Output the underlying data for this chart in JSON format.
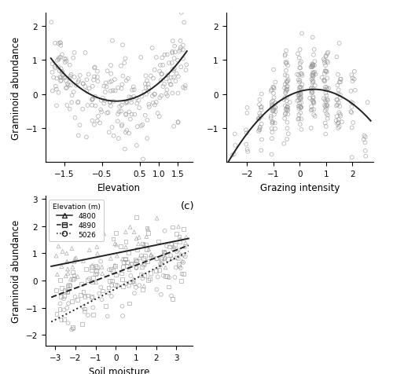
{
  "panel_a": {
    "xlabel": "Elevation",
    "ylabel": "Graminoid abundance",
    "xlim": [
      -2.0,
      1.9
    ],
    "ylim": [
      -2.0,
      2.4
    ],
    "xticks": [
      -1.5,
      -0.5,
      0.5,
      1.0,
      1.5
    ],
    "yticks": [
      -1,
      0,
      1,
      2
    ],
    "curve_a": 0.42,
    "curve_b": 0.1,
    "curve_c": -0.2,
    "curve_xmin": -1.85,
    "curve_xmax": 1.75
  },
  "panel_b": {
    "xlabel": "Grazing intensity",
    "ylabel": "",
    "xlim": [
      -2.8,
      2.8
    ],
    "ylim": [
      -2.0,
      2.4
    ],
    "xticks": [
      -2,
      -1,
      0,
      1,
      2
    ],
    "yticks": [
      -1,
      0,
      1,
      2
    ],
    "curve_a": -0.2,
    "curve_b": 0.22,
    "curve_c": 0.08,
    "curve_xmin": -2.7,
    "curve_xmax": 2.7
  },
  "panel_c": {
    "xlabel": "Soil moisture",
    "ylabel": "Graminoid abundance",
    "label": "(c)",
    "xlim": [
      -3.5,
      3.8
    ],
    "ylim": [
      -2.4,
      3.1
    ],
    "xticks": [
      -3,
      -2,
      -1,
      0,
      1,
      2,
      3
    ],
    "yticks": [
      -2,
      -1,
      0,
      1,
      2,
      3
    ],
    "elevation_labels": [
      "4800",
      "4890",
      "5026"
    ],
    "line_styles": [
      "-",
      "--",
      ":"
    ],
    "line_intercepts": [
      1.0,
      0.28,
      -0.3
    ],
    "line_slopes": [
      0.15,
      0.28,
      0.38
    ],
    "line_xmin": -3.2,
    "line_xmax": 3.6
  },
  "scatter_color": "#999999",
  "scatter_alpha": 0.75,
  "scatter_size": 12,
  "line_color": "#222222",
  "line_width": 1.4,
  "bg_color": "#ffffff",
  "font_size": 8.5,
  "label_fontsize": 9.5
}
